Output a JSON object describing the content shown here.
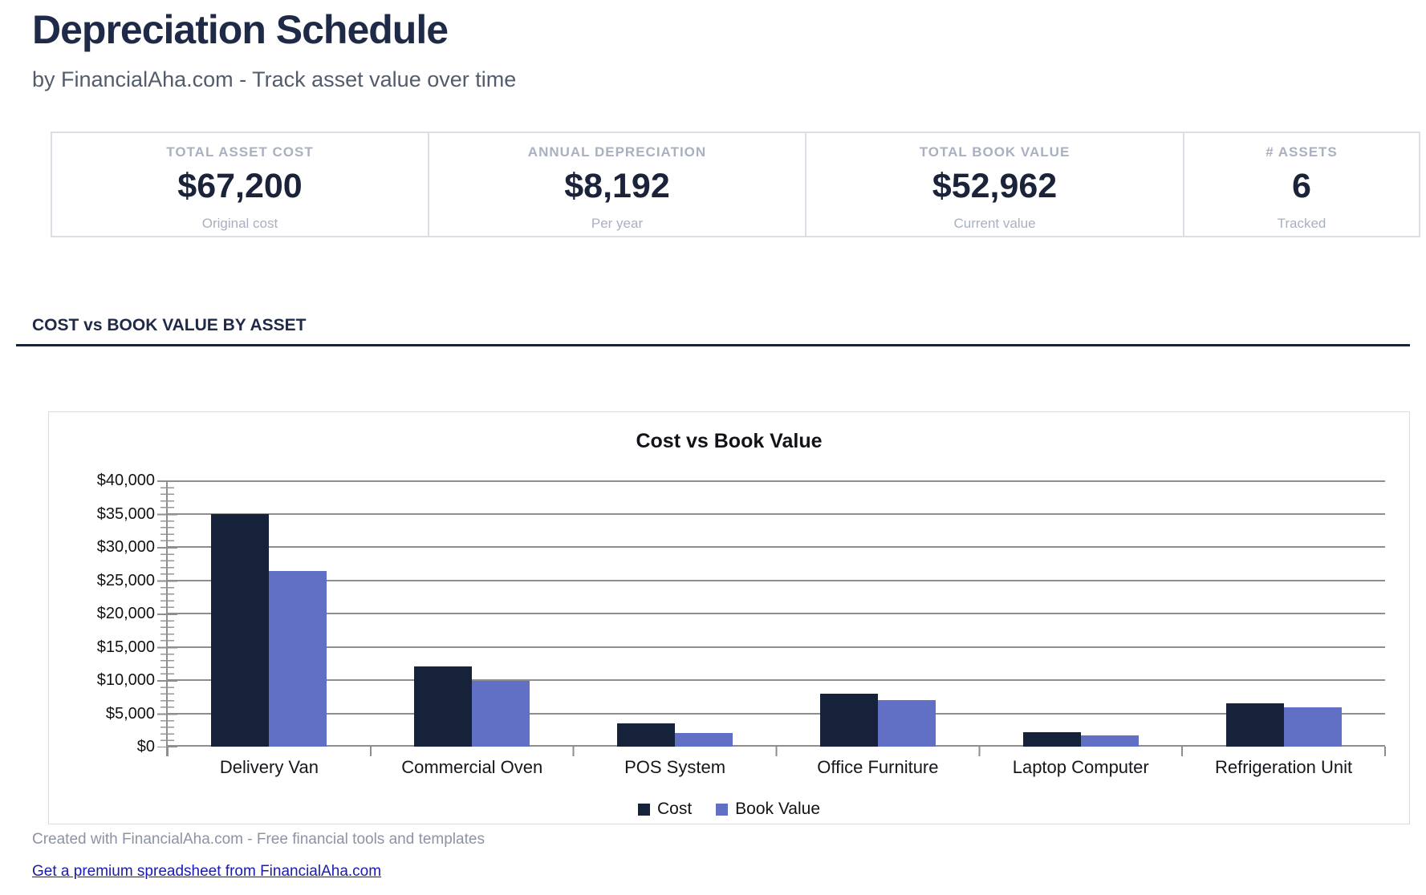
{
  "header": {
    "title": "Depreciation Schedule",
    "subtitle": "by FinancialAha.com - Track asset value over time"
  },
  "stats": {
    "cards": [
      {
        "label": "TOTAL ASSET COST",
        "value": "$67,200",
        "sublabel": "Original cost"
      },
      {
        "label": "ANNUAL DEPRECIATION",
        "value": "$8,192",
        "sublabel": "Per year"
      },
      {
        "label": "TOTAL BOOK VALUE",
        "value": "$52,962",
        "sublabel": "Current value"
      },
      {
        "label": "# ASSETS",
        "value": "6",
        "sublabel": "Tracked"
      }
    ]
  },
  "section": {
    "title": "COST vs BOOK VALUE BY ASSET"
  },
  "chart_data": {
    "type": "bar",
    "title": "Cost vs Book Value",
    "categories": [
      "Delivery Van",
      "Commercial Oven",
      "POS System",
      "Office Furniture",
      "Laptop Computer",
      "Refrigeration Unit"
    ],
    "series": [
      {
        "name": "Cost",
        "color": "#16223a",
        "values": [
          35000,
          12000,
          3500,
          8000,
          2200,
          6500
        ]
      },
      {
        "name": "Book Value",
        "color": "#6170c4",
        "values": [
          26400,
          9900,
          2100,
          7000,
          1662,
          5900
        ]
      }
    ],
    "ylim": [
      0,
      40000
    ],
    "ytick_step": 5000,
    "ytick_labels": [
      "$0",
      "$5,000",
      "$10,000",
      "$15,000",
      "$20,000",
      "$25,000",
      "$30,000",
      "$35,000",
      "$40,000"
    ],
    "grid": true,
    "legend_position": "bottom",
    "gridline_color": "#8e8e8e"
  },
  "footer": {
    "credit": "Created with FinancialAha.com - Free financial tools and templates",
    "link_label": "Get a premium spreadsheet from FinancialAha.com"
  }
}
